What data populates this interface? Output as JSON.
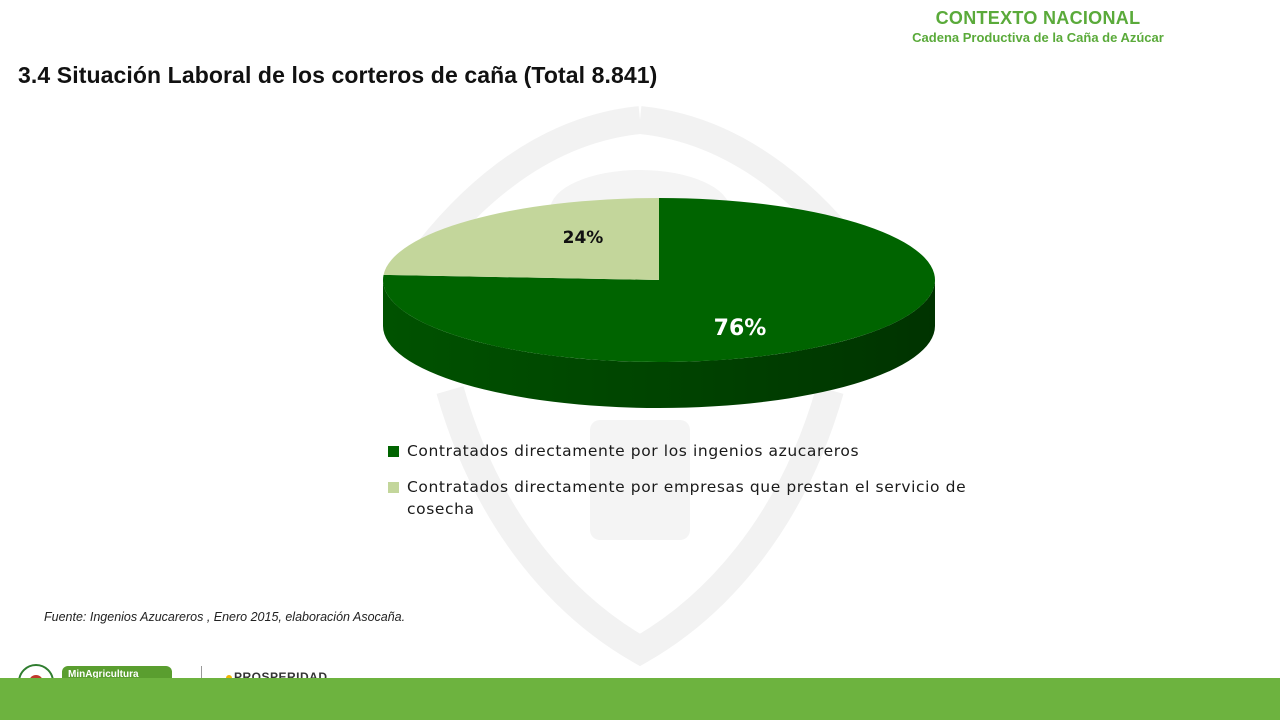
{
  "header": {
    "section": "CONTEXTO NACIONAL",
    "subsection": "Cadena Productiva de la Caña de Azúcar"
  },
  "title": "3.4 Situación Laboral de los corteros  de caña (Total 8.841)",
  "source_note": "Fuente: Ingenios Azucareros , Enero 2015, elaboración Asocaña.",
  "footer": {
    "logo1_text": "MinAgricultura",
    "logo2_text": "PROSPERIDAD"
  },
  "colors": {
    "dark_green": "#006400",
    "light_green": "#c3d69b",
    "accent_green": "#5aaa3a",
    "footer_green": "#6db33f"
  },
  "chart_data": {
    "type": "pie",
    "style": "3d",
    "title": "",
    "legend_position": "bottom",
    "series": [
      {
        "name": "",
        "labels": [
          "Contratados directamente por los ingenios azucareros",
          "Contratados directamente por empresas que prestan el servicio de cosecha"
        ],
        "values": [
          76,
          24
        ],
        "data_labels": [
          "76%",
          "24%"
        ],
        "colors": [
          "#006400",
          "#c3d69b"
        ]
      }
    ]
  }
}
